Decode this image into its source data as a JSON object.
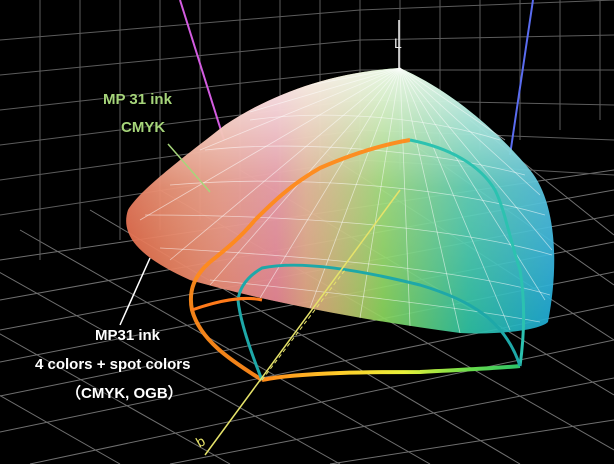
{
  "axis_label_l": "L",
  "axis_label_b": "b",
  "labels": {
    "cmyk_gamut": {
      "line1": "MP 31 ink",
      "line2": "CMYK",
      "color": "#a6d57a"
    },
    "spot_gamut": {
      "line1": "MP31 ink",
      "line2": "4 colors + spot colors",
      "line3": "（CMYK, OGB）",
      "color": "#ffffff"
    }
  },
  "colors": {
    "background": "#000000",
    "grid": "#6f6f6f",
    "axis_l": "#f0f0f0",
    "axis_b": "#e6e36a"
  }
}
